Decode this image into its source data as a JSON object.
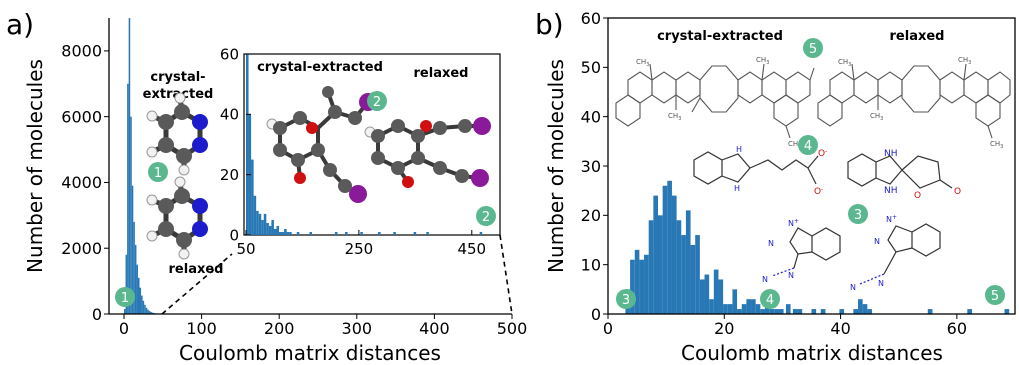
{
  "chart_data": [
    {
      "panel": "a)",
      "type": "bar",
      "xlabel": "Coulomb matrix distances",
      "ylabel": "Number of molecules",
      "xlim": [
        0,
        500
      ],
      "ylim": [
        0,
        9000
      ],
      "xticks": [
        0,
        100,
        200,
        300,
        400,
        500
      ],
      "yticks": [
        0,
        2000,
        4000,
        6000,
        8000
      ],
      "bin_width": 2,
      "x": [
        1,
        3,
        5,
        7,
        9,
        11,
        13,
        15,
        17,
        19,
        21,
        23,
        25,
        27,
        29,
        31,
        33,
        35,
        37,
        39,
        41,
        43,
        45,
        47,
        49
      ],
      "values": [
        150,
        1800,
        7000,
        9000,
        6000,
        3900,
        2800,
        2100,
        1500,
        1100,
        800,
        560,
        400,
        280,
        190,
        130,
        90,
        60,
        40,
        28,
        20,
        14,
        10,
        7,
        5
      ],
      "labels": {
        "crystal": "crystal-\nextracted",
        "relaxed": "relaxed",
        "badge_1a": "1",
        "badge_1b": "1",
        "badge_2": "2"
      },
      "inset": {
        "type": "bar",
        "xlim": [
          50,
          500
        ],
        "ylim": [
          0,
          60
        ],
        "xticks": [
          50,
          250,
          450
        ],
        "yticks": [
          0,
          20,
          40,
          60
        ],
        "bin_width": 4.5,
        "x": [
          52.25,
          56.75,
          61.25,
          65.75,
          70.25,
          74.75,
          79.25,
          83.75,
          88.25,
          92.75,
          97.25,
          101.75,
          106.25,
          110.75,
          115.25,
          119.75,
          124.25,
          128.75,
          142.25,
          164.75,
          209.75,
          227.75,
          254.75,
          286.25,
          313.25,
          349.25,
          371.75,
          466.25
        ],
        "values": [
          60,
          40,
          25,
          13,
          8,
          7,
          5,
          7,
          4,
          3,
          5,
          2,
          3,
          1,
          1,
          2,
          1,
          1,
          1,
          1,
          1,
          1,
          1,
          1,
          1,
          1,
          1,
          1
        ],
        "labels": {
          "crystal": "crystal-extracted",
          "relaxed": "relaxed",
          "badge_2": "2"
        }
      }
    },
    {
      "panel": "b)",
      "type": "bar",
      "xlabel": "Coulomb matrix distances",
      "ylabel": "Number of molecules",
      "xlim": [
        0,
        70
      ],
      "ylim": [
        0,
        60
      ],
      "xticks": [
        0,
        20,
        40,
        60
      ],
      "yticks": [
        0,
        10,
        20,
        30,
        40,
        50,
        60
      ],
      "bin_width": 0.8,
      "x": [
        3.4,
        4.2,
        5.0,
        5.8,
        6.6,
        7.4,
        8.2,
        9.0,
        9.8,
        10.6,
        11.4,
        12.2,
        13.0,
        13.8,
        14.6,
        15.4,
        16.2,
        17.0,
        17.8,
        18.6,
        19.4,
        20.2,
        21.0,
        21.8,
        22.6,
        23.4,
        24.2,
        25.0,
        25.8,
        26.6,
        27.4,
        28.2,
        29.0,
        29.8,
        31.0,
        32.2,
        33.0,
        35.4,
        37.0,
        40.2,
        42.6,
        43.4,
        44.2,
        45.0,
        55.4,
        62.2,
        68.6
      ],
      "values": [
        5,
        11,
        13,
        11,
        12,
        19,
        24,
        20,
        26,
        27,
        24,
        19,
        16,
        21,
        14,
        16,
        7,
        8,
        3,
        9,
        7,
        2,
        2,
        5,
        1,
        2,
        3,
        3,
        2,
        1,
        2,
        1,
        1,
        1,
        2,
        1,
        1,
        1,
        1,
        1,
        1,
        3,
        2,
        1,
        1,
        1,
        1
      ],
      "labels": {
        "crystal": "crystal-extracted",
        "relaxed": "relaxed",
        "badge_5a": "5",
        "badge_5b": "5",
        "badge_4a": "4",
        "badge_4b": "4",
        "badge_3a": "3",
        "badge_3b": "3"
      },
      "mol_text": {
        "ch3": "CH",
        "sub3": "3",
        "nh": "NH",
        "h": "H",
        "n": "N",
        "o": "O",
        "ominus": "O",
        "minus": "-",
        "plus": "+"
      }
    }
  ],
  "colors": {
    "bar": "#2878b5",
    "badge": "#5bb88e",
    "carbon": "#5a5a5a",
    "hydrogen": "#f2f2f2",
    "nitrogen": "#1c1ccc",
    "oxygen": "#d01010",
    "iodine": "#8a1a9a",
    "bond_line": "#555555"
  }
}
